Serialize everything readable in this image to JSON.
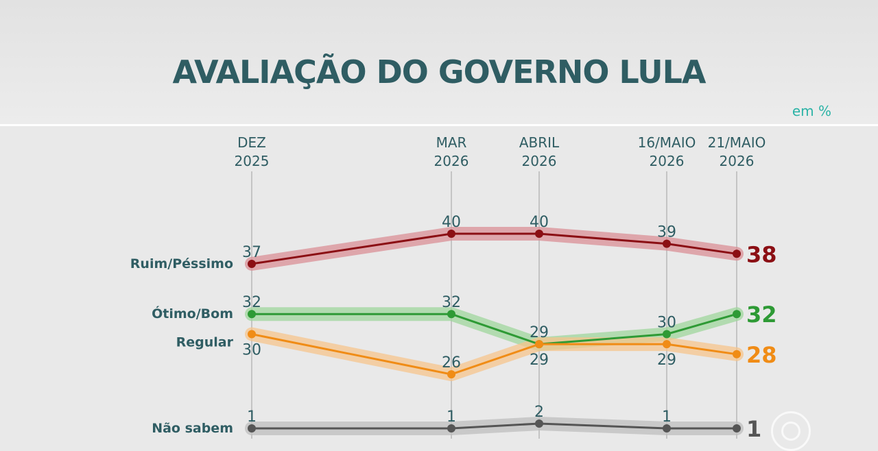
{
  "header": {
    "title": "AVALIAÇÃO DO GOVERNO LULA",
    "unit_label": "em %"
  },
  "chart_data": {
    "type": "line",
    "title": "AVALIAÇÃO DO GOVERNO LULA",
    "unit": "em %",
    "categories": [
      "DEZ 2025",
      "MAR 2026",
      "ABRIL 2026",
      "16/MAIO 2026",
      "21/MAIO 2026"
    ],
    "category_lines": [
      [
        "DEZ",
        "2025"
      ],
      [
        "MAR",
        "2026"
      ],
      [
        "ABRIL",
        "2026"
      ],
      [
        "16/MAIO",
        "2026"
      ],
      [
        "21/MAIO",
        "2026"
      ]
    ],
    "series": [
      {
        "name": "Ruim/Péssimo",
        "values": [
          37,
          40,
          40,
          39,
          38
        ],
        "color": "#8b0f14",
        "band_color": "#d98f96"
      },
      {
        "name": "Ótimo/Bom",
        "values": [
          32,
          32,
          29,
          30,
          32
        ],
        "color": "#2e9a35",
        "band_color": "#9fd69c"
      },
      {
        "name": "Regular",
        "values": [
          30,
          26,
          29,
          29,
          28
        ],
        "color": "#f08c16",
        "band_color": "#f6c48c"
      },
      {
        "name": "Não sabem",
        "values": [
          1,
          1,
          2,
          1,
          1
        ],
        "color": "#555555",
        "band_color": "#bdbdbd"
      }
    ],
    "grid": false,
    "legend": "left labels"
  }
}
